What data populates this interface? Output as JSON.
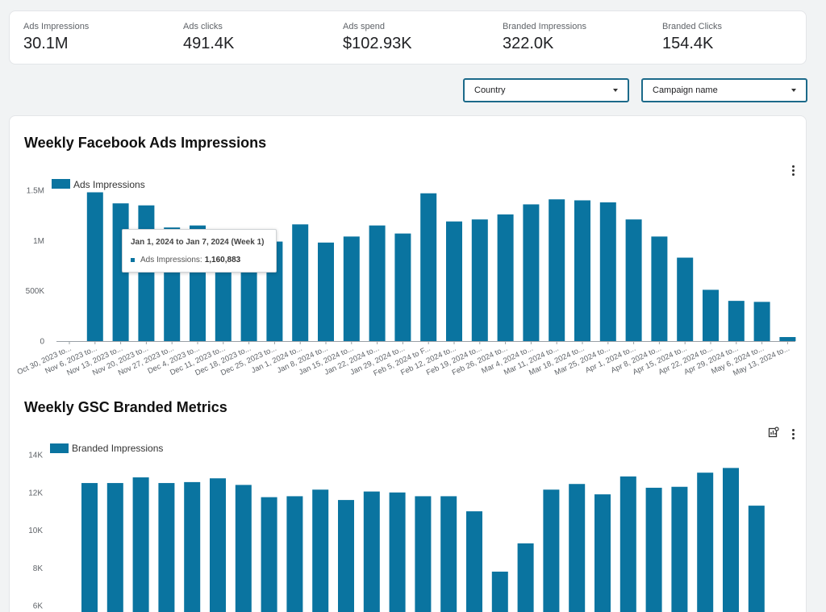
{
  "kpis": [
    {
      "label": "Ads Impressions",
      "value": "30.1M"
    },
    {
      "label": "Ads clicks",
      "value": "491.4K"
    },
    {
      "label": "Ads spend",
      "value": "$102.93K"
    },
    {
      "label": "Branded Impressions",
      "value": "322.0K"
    },
    {
      "label": "Branded Clicks",
      "value": "154.4K"
    }
  ],
  "filters": {
    "country": "Country",
    "campaign": "Campaign name"
  },
  "colors": {
    "bar": "#0a74a0",
    "accent": "#1c6a8a"
  },
  "tooltip": {
    "title": "Jan 1, 2024 to Jan 7, 2024 (Week 1)",
    "series": "Ads Impressions:",
    "value": "1,160,883"
  },
  "chart_data": [
    {
      "type": "bar",
      "title": "Weekly Facebook Ads Impressions",
      "legend": "Ads Impressions",
      "categories": [
        "Oct 30, 2023 to...",
        "Nov 6, 2023 to...",
        "Nov 13, 2023 to...",
        "Nov 20, 2023 to...",
        "Nov 27, 2023 to...",
        "Dec 4, 2023 to...",
        "Dec 11, 2023 to...",
        "Dec 18, 2023 to...",
        "Dec 25, 2023 to...",
        "Jan 1, 2024 to...",
        "Jan 8, 2024 to...",
        "Jan 15, 2024 to...",
        "Jan 22, 2024 to...",
        "Jan 29, 2024 to...",
        "Feb 5, 2024 to F...",
        "Feb 12, 2024 to...",
        "Feb 19, 2024 to...",
        "Feb 26, 2024 to...",
        "Mar 4, 2024 to...",
        "Mar 11, 2024 to...",
        "Mar 18, 2024 to...",
        "Mar 25, 2024 to...",
        "Apr 1, 2024 to...",
        "Apr 8, 2024 to...",
        "Apr 15, 2024 to...",
        "Apr 22, 2024 to...",
        "Apr 29, 2024 to...",
        "May 6, 2024 to...",
        "May 13, 2024 to..."
      ],
      "values": [
        0,
        1480000,
        1370000,
        1350000,
        1130000,
        1150000,
        960000,
        960000,
        990000,
        1160883,
        980000,
        1040000,
        1150000,
        1070000,
        1470000,
        1190000,
        1210000,
        1260000,
        1360000,
        1410000,
        1400000,
        1380000,
        1210000,
        1040000,
        830000,
        510000,
        400000,
        390000,
        40000
      ],
      "ylim": [
        0,
        1500000
      ],
      "yticks": [
        "0",
        "500K",
        "1M",
        "1.5M"
      ]
    },
    {
      "type": "bar",
      "title": "Weekly GSC Branded Metrics",
      "legend": "Branded Impressions",
      "values": [
        12500,
        12500,
        12800,
        12500,
        12550,
        12750,
        12400,
        11750,
        11800,
        12150,
        11600,
        12050,
        12000,
        11800,
        11800,
        11000,
        7800,
        9300,
        12150,
        12450,
        11900,
        12850,
        12250,
        12300,
        13050,
        13300,
        11300
      ],
      "ylim": [
        6000,
        14000
      ],
      "yticks": [
        "6K",
        "8K",
        "10K",
        "12K",
        "14K"
      ]
    }
  ]
}
